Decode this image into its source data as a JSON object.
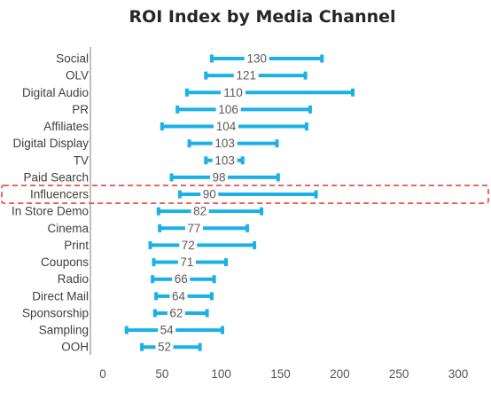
{
  "chart_data": {
    "type": "bar",
    "title": "ROI Index by Media Channel",
    "xlabel": "",
    "ylabel": "",
    "xlim": [
      0,
      300
    ],
    "xticks": [
      0,
      50,
      100,
      150,
      200,
      250,
      300
    ],
    "grid": false,
    "legend": "none",
    "colors": {
      "bar": "#1cb0e8",
      "highlight": "#e0483f",
      "axis": "#7f7f7f",
      "title": "#262626"
    },
    "highlight_category": "Influencers",
    "categories": [
      "Social",
      "OLV",
      "Digital Audio",
      "PR",
      "Affiliates",
      "Digital Display",
      "TV",
      "Paid Search",
      "Influencers",
      "In Store Demo",
      "Cinema",
      "Print",
      "Coupons",
      "Radio",
      "Direct Mail",
      "Sponsorship",
      "Sampling",
      "OOH"
    ],
    "series": [
      {
        "values": [
          130,
          121,
          110,
          106,
          104,
          103,
          103,
          98,
          90,
          82,
          77,
          72,
          71,
          66,
          64,
          62,
          54,
          52
        ],
        "low": [
          92,
          87,
          71,
          63,
          50,
          73,
          87,
          58,
          65,
          47,
          48,
          40,
          43,
          42,
          45,
          44,
          20,
          33
        ],
        "high": [
          185,
          171,
          211,
          175,
          172,
          147,
          118,
          148,
          180,
          134,
          122,
          128,
          104,
          94,
          92,
          88,
          101,
          82
        ]
      }
    ]
  }
}
